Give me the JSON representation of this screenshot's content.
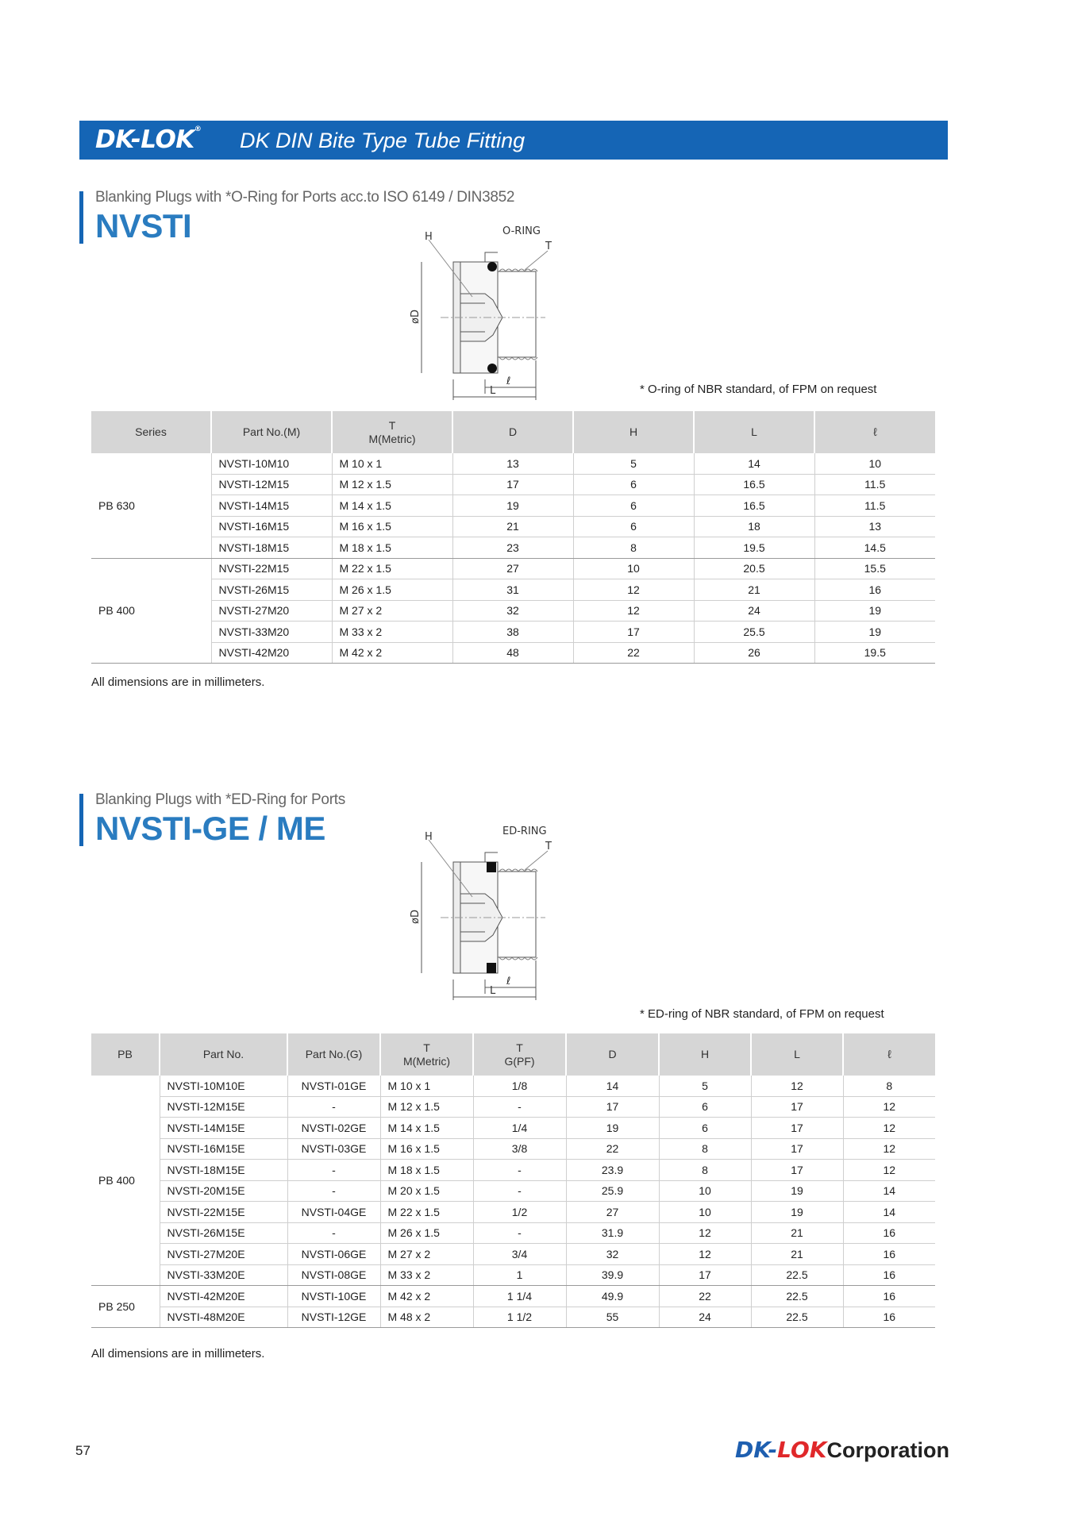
{
  "header": {
    "logo": "DK-LOK",
    "logo_mark": "®",
    "title": "DK DIN Bite Type Tube Fitting"
  },
  "section1": {
    "subtitle": "Blanking Plugs with *O-Ring for Ports acc.to ISO 6149 / DIN3852",
    "title": "NVSTI",
    "diagram": {
      "labels": {
        "h": "H",
        "ring": "O-RING",
        "t": "T",
        "d": "øD",
        "ell": "ℓ",
        "l": "L"
      }
    },
    "note": "* O-ring of NBR standard, of FPM on request",
    "headers": [
      "Series",
      "Part No.(M)",
      "T",
      "M(Metric)",
      "D",
      "H",
      "L",
      "ℓ"
    ],
    "groups": [
      {
        "series": "PB 630",
        "rows": [
          [
            "NVSTI-10M10",
            "M 10 x 1",
            "13",
            "5",
            "14",
            "10"
          ],
          [
            "NVSTI-12M15",
            "M 12 x 1.5",
            "17",
            "6",
            "16.5",
            "11.5"
          ],
          [
            "NVSTI-14M15",
            "M 14 x 1.5",
            "19",
            "6",
            "16.5",
            "11.5"
          ],
          [
            "NVSTI-16M15",
            "M 16 x 1.5",
            "21",
            "6",
            "18",
            "13"
          ],
          [
            "NVSTI-18M15",
            "M 18 x 1.5",
            "23",
            "8",
            "19.5",
            "14.5"
          ]
        ]
      },
      {
        "series": "PB 400",
        "rows": [
          [
            "NVSTI-22M15",
            "M 22 x 1.5",
            "27",
            "10",
            "20.5",
            "15.5"
          ],
          [
            "NVSTI-26M15",
            "M 26 x 1.5",
            "31",
            "12",
            "21",
            "16"
          ],
          [
            "NVSTI-27M20",
            "M 27 x 2",
            "32",
            "12",
            "24",
            "19"
          ],
          [
            "NVSTI-33M20",
            "M 33 x 2",
            "38",
            "17",
            "25.5",
            "19"
          ],
          [
            "NVSTI-42M20",
            "M 42 x 2",
            "48",
            "22",
            "26",
            "19.5"
          ]
        ]
      }
    ],
    "footnote": "All dimensions are in millimeters."
  },
  "section2": {
    "subtitle": "Blanking Plugs with *ED-Ring for Ports",
    "title": "NVSTI-GE / ME",
    "diagram": {
      "labels": {
        "h": "H",
        "ring": "ED-RING",
        "t": "T",
        "d": "øD",
        "ell": "ℓ",
        "l": "L"
      }
    },
    "note": "* ED-ring of NBR standard, of FPM on request",
    "headers": [
      "PB",
      "Part No.",
      "Part No.(G)",
      "T",
      "M(Metric)",
      "T",
      "G(PF)",
      "D",
      "H",
      "L",
      "ℓ"
    ],
    "groups": [
      {
        "series": "PB 400",
        "rows": [
          [
            "NVSTI-10M10E",
            "NVSTI-01GE",
            "M 10 x 1",
            "1/8",
            "14",
            "5",
            "12",
            "8"
          ],
          [
            "NVSTI-12M15E",
            "-",
            "M 12 x 1.5",
            "-",
            "17",
            "6",
            "17",
            "12"
          ],
          [
            "NVSTI-14M15E",
            "NVSTI-02GE",
            "M 14 x 1.5",
            "1/4",
            "19",
            "6",
            "17",
            "12"
          ],
          [
            "NVSTI-16M15E",
            "NVSTI-03GE",
            "M 16 x 1.5",
            "3/8",
            "22",
            "8",
            "17",
            "12"
          ],
          [
            "NVSTI-18M15E",
            "-",
            "M 18 x 1.5",
            "-",
            "23.9",
            "8",
            "17",
            "12"
          ],
          [
            "NVSTI-20M15E",
            "-",
            "M 20 x 1.5",
            "-",
            "25.9",
            "10",
            "19",
            "14"
          ],
          [
            "NVSTI-22M15E",
            "NVSTI-04GE",
            "M 22 x 1.5",
            "1/2",
            "27",
            "10",
            "19",
            "14"
          ],
          [
            "NVSTI-26M15E",
            "-",
            "M 26 x 1.5",
            "-",
            "31.9",
            "12",
            "21",
            "16"
          ],
          [
            "NVSTI-27M20E",
            "NVSTI-06GE",
            "M 27 x 2",
            "3/4",
            "32",
            "12",
            "21",
            "16"
          ],
          [
            "NVSTI-33M20E",
            "NVSTI-08GE",
            "M 33 x 2",
            "1",
            "39.9",
            "17",
            "22.5",
            "16"
          ]
        ]
      },
      {
        "series": "PB 250",
        "rows": [
          [
            "NVSTI-42M20E",
            "NVSTI-10GE",
            "M 42 x 2",
            "1 1/4",
            "49.9",
            "22",
            "22.5",
            "16"
          ],
          [
            "NVSTI-48M20E",
            "NVSTI-12GE",
            "M 48 x 2",
            "1 1/2",
            "55",
            "24",
            "22.5",
            "16"
          ]
        ]
      }
    ],
    "footnote": "All dimensions are in millimeters."
  },
  "footer": {
    "page": "57",
    "logo_dk": "DK-",
    "logo_lok": "LOK",
    "logo_corp": "Corporation"
  },
  "colors": {
    "brand_blue": "#1565b5",
    "title_blue": "#2a7cc0",
    "header_gray": "#d6d6d6",
    "logo_red": "#e0282a"
  }
}
